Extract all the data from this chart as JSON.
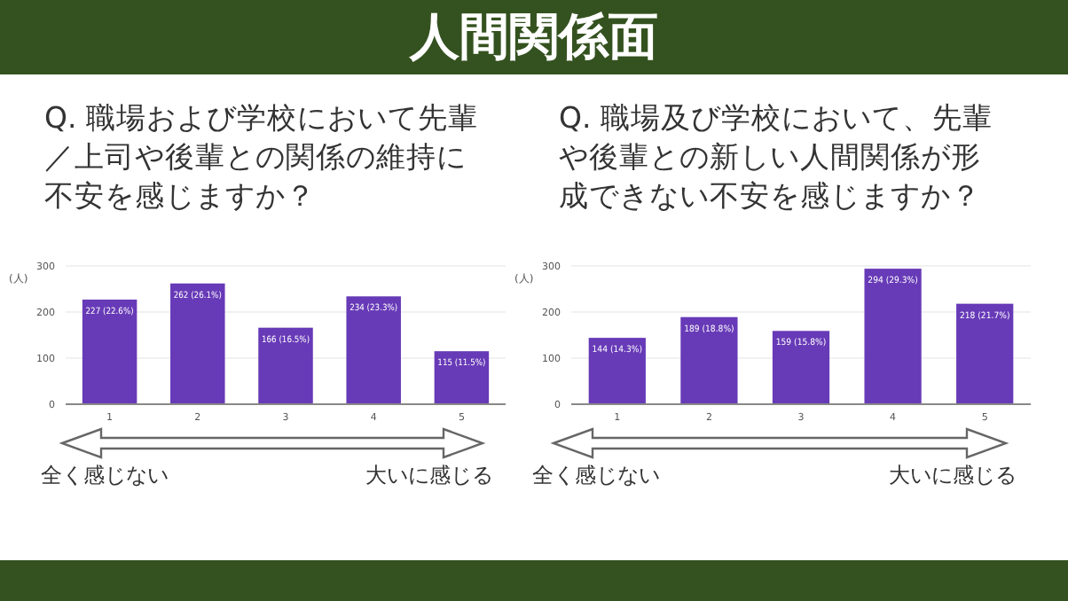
{
  "chart_data": [
    {
      "type": "bar",
      "title": "Q. 職場および学校において先輩／上司や後輩との関係の維持に不安を感じますか？",
      "ylabel": "(人)",
      "categories": [
        "1",
        "2",
        "3",
        "4",
        "5"
      ],
      "values": [
        227,
        262,
        166,
        234,
        115
      ],
      "value_labels": [
        "227 (22.6%)",
        "262 (26.1%)",
        "166 (16.5%)",
        "234 (23.3%)",
        "115 (11.5%)"
      ],
      "color": "#673ab7",
      "ylim": [
        0,
        300
      ],
      "yticks": [
        0,
        100,
        200,
        300
      ],
      "grid": "y",
      "annotations": [
        "人間関係面",
        "全く感じない",
        "大いに感じる"
      ]
    },
    {
      "type": "bar",
      "title": "Q. 職場及び学校において、先輩や後輩との新しい人間関係が形成できない不安を感じますか？",
      "ylabel": "(人)",
      "categories": [
        "1",
        "2",
        "3",
        "4",
        "5"
      ],
      "values": [
        144,
        189,
        159,
        294,
        218
      ],
      "value_labels": [
        "144 (14.3%)",
        "189 (18.8%)",
        "159 (15.8%)",
        "294 (29.3%)",
        "218 (21.7%)"
      ],
      "color": "#673ab7",
      "ylim": [
        0,
        300
      ],
      "yticks": [
        0,
        100,
        200,
        300
      ],
      "grid": "y",
      "annotations": [
        "全く感じない",
        "大いに感じる"
      ]
    }
  ]
}
